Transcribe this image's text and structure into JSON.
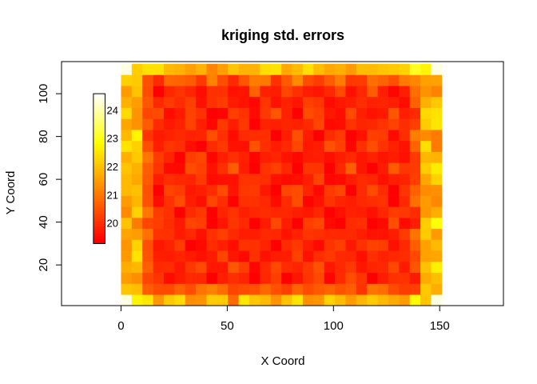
{
  "chart_data": {
    "type": "heatmap",
    "title": "kriging std. errors",
    "xlabel": "X Coord",
    "ylabel": "Y Coord",
    "xlim": [
      -28,
      180
    ],
    "ylim": [
      1,
      115
    ],
    "xticks": [
      0,
      50,
      100,
      150
    ],
    "yticks": [
      20,
      40,
      60,
      80,
      100
    ],
    "grid_extent": {
      "x": [
        0,
        151
      ],
      "y": [
        1,
        114
      ]
    },
    "grid_size": {
      "cols": 30,
      "rows": 22
    },
    "value_range": [
      19.4,
      24.6
    ],
    "colorscale": [
      "#ff0000",
      "#ff4000",
      "#ff8000",
      "#ffbf00",
      "#ffff00",
      "#ffff80",
      "#ffffff"
    ],
    "legend": {
      "placement": "top-left",
      "range": [
        19.3,
        24.6
      ],
      "y_extent": [
        30,
        100
      ],
      "x_extent": [
        -13,
        -7.5
      ],
      "ticks": [
        20,
        21,
        22,
        23,
        24
      ]
    },
    "grid": false
  }
}
